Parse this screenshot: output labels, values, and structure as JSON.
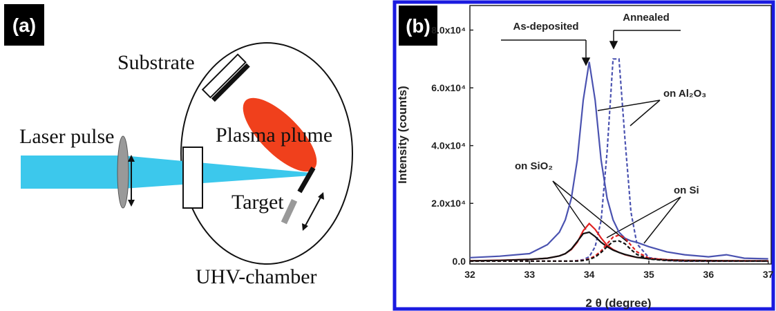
{
  "panel_a": {
    "label": "(a)",
    "texts": {
      "substrate": "Substrate",
      "laser": "Laser pulse",
      "plume": "Plasma plume",
      "target": "Target",
      "chamber": "UHV-chamber"
    }
  },
  "chart_data": {
    "type": "line",
    "label": "(b)",
    "x_label": "2 θ (degree)",
    "y_label": "Intensity (counts)",
    "annotations": [
      "As-deposited",
      "Annealed",
      "on Al₂O₃",
      "on SiO₂",
      "on Si"
    ],
    "x": [
      32,
      32.5,
      33,
      33.3,
      33.5,
      33.6,
      33.7,
      33.8,
      33.9,
      34.0,
      34.1,
      34.2,
      34.3,
      34.4,
      34.5,
      34.6,
      34.7,
      34.8,
      35.0,
      35.3,
      35.6,
      36.0,
      36.3,
      36.6,
      37.0
    ],
    "series": [
      {
        "color": "#4a52b0",
        "dashed": false,
        "values": [
          1200,
          1700,
          2600,
          5700,
          10000,
          14300,
          21700,
          35000,
          55700,
          69000,
          55700,
          35000,
          21700,
          14300,
          10000,
          7900,
          7000,
          6500,
          5000,
          3200,
          2200,
          1500,
          2200,
          1000,
          800
        ]
      },
      {
        "color": "#4a52b0",
        "dashed": true,
        "values": [
          0,
          0,
          0,
          0,
          0,
          0,
          0,
          200,
          500,
          1500,
          5000,
          14000,
          38000,
          70000,
          70000,
          42000,
          17000,
          6000,
          1200,
          300,
          0,
          0,
          0,
          0,
          0
        ]
      },
      {
        "color": "#e02020",
        "dashed": false,
        "values": [
          100,
          300,
          600,
          1000,
          1800,
          2600,
          4000,
          6500,
          10500,
          13000,
          11000,
          8000,
          5500,
          4000,
          3000,
          2200,
          1700,
          1300,
          900,
          500,
          300,
          200,
          150,
          100,
          100
        ]
      },
      {
        "color": "#111111",
        "dashed": false,
        "values": [
          100,
          250,
          600,
          1000,
          1800,
          2600,
          4200,
          6800,
          9500,
          10000,
          8500,
          6500,
          5000,
          3800,
          3000,
          2300,
          1800,
          1300,
          800,
          400,
          250,
          150,
          100,
          80,
          50
        ]
      },
      {
        "color": "#e02020",
        "dashed": true,
        "values": [
          0,
          0,
          0,
          0,
          0,
          0,
          0,
          100,
          300,
          800,
          1800,
          3500,
          6000,
          8300,
          9000,
          8000,
          5500,
          3200,
          1000,
          300,
          100,
          0,
          0,
          0,
          0
        ]
      },
      {
        "color": "#111111",
        "dashed": true,
        "values": [
          0,
          0,
          0,
          0,
          0,
          0,
          0,
          0,
          200,
          600,
          1400,
          3000,
          5000,
          6800,
          7000,
          6000,
          4000,
          2300,
          700,
          200,
          0,
          0,
          0,
          0,
          0
        ]
      }
    ],
    "xlim": [
      32,
      37.05
    ],
    "ylim": [
      -1000,
      88500
    ],
    "xticks": [
      32,
      33,
      34,
      35,
      36,
      37
    ],
    "yticks": [
      {
        "value": 0,
        "label": "0.0"
      },
      {
        "value": 20000,
        "label": "2.0x10⁴"
      },
      {
        "value": 40000,
        "label": "4.0x10⁴"
      },
      {
        "value": 60000,
        "label": "6.0x10⁴"
      },
      {
        "value": 80000,
        "label": "8.0x10⁴"
      }
    ]
  }
}
